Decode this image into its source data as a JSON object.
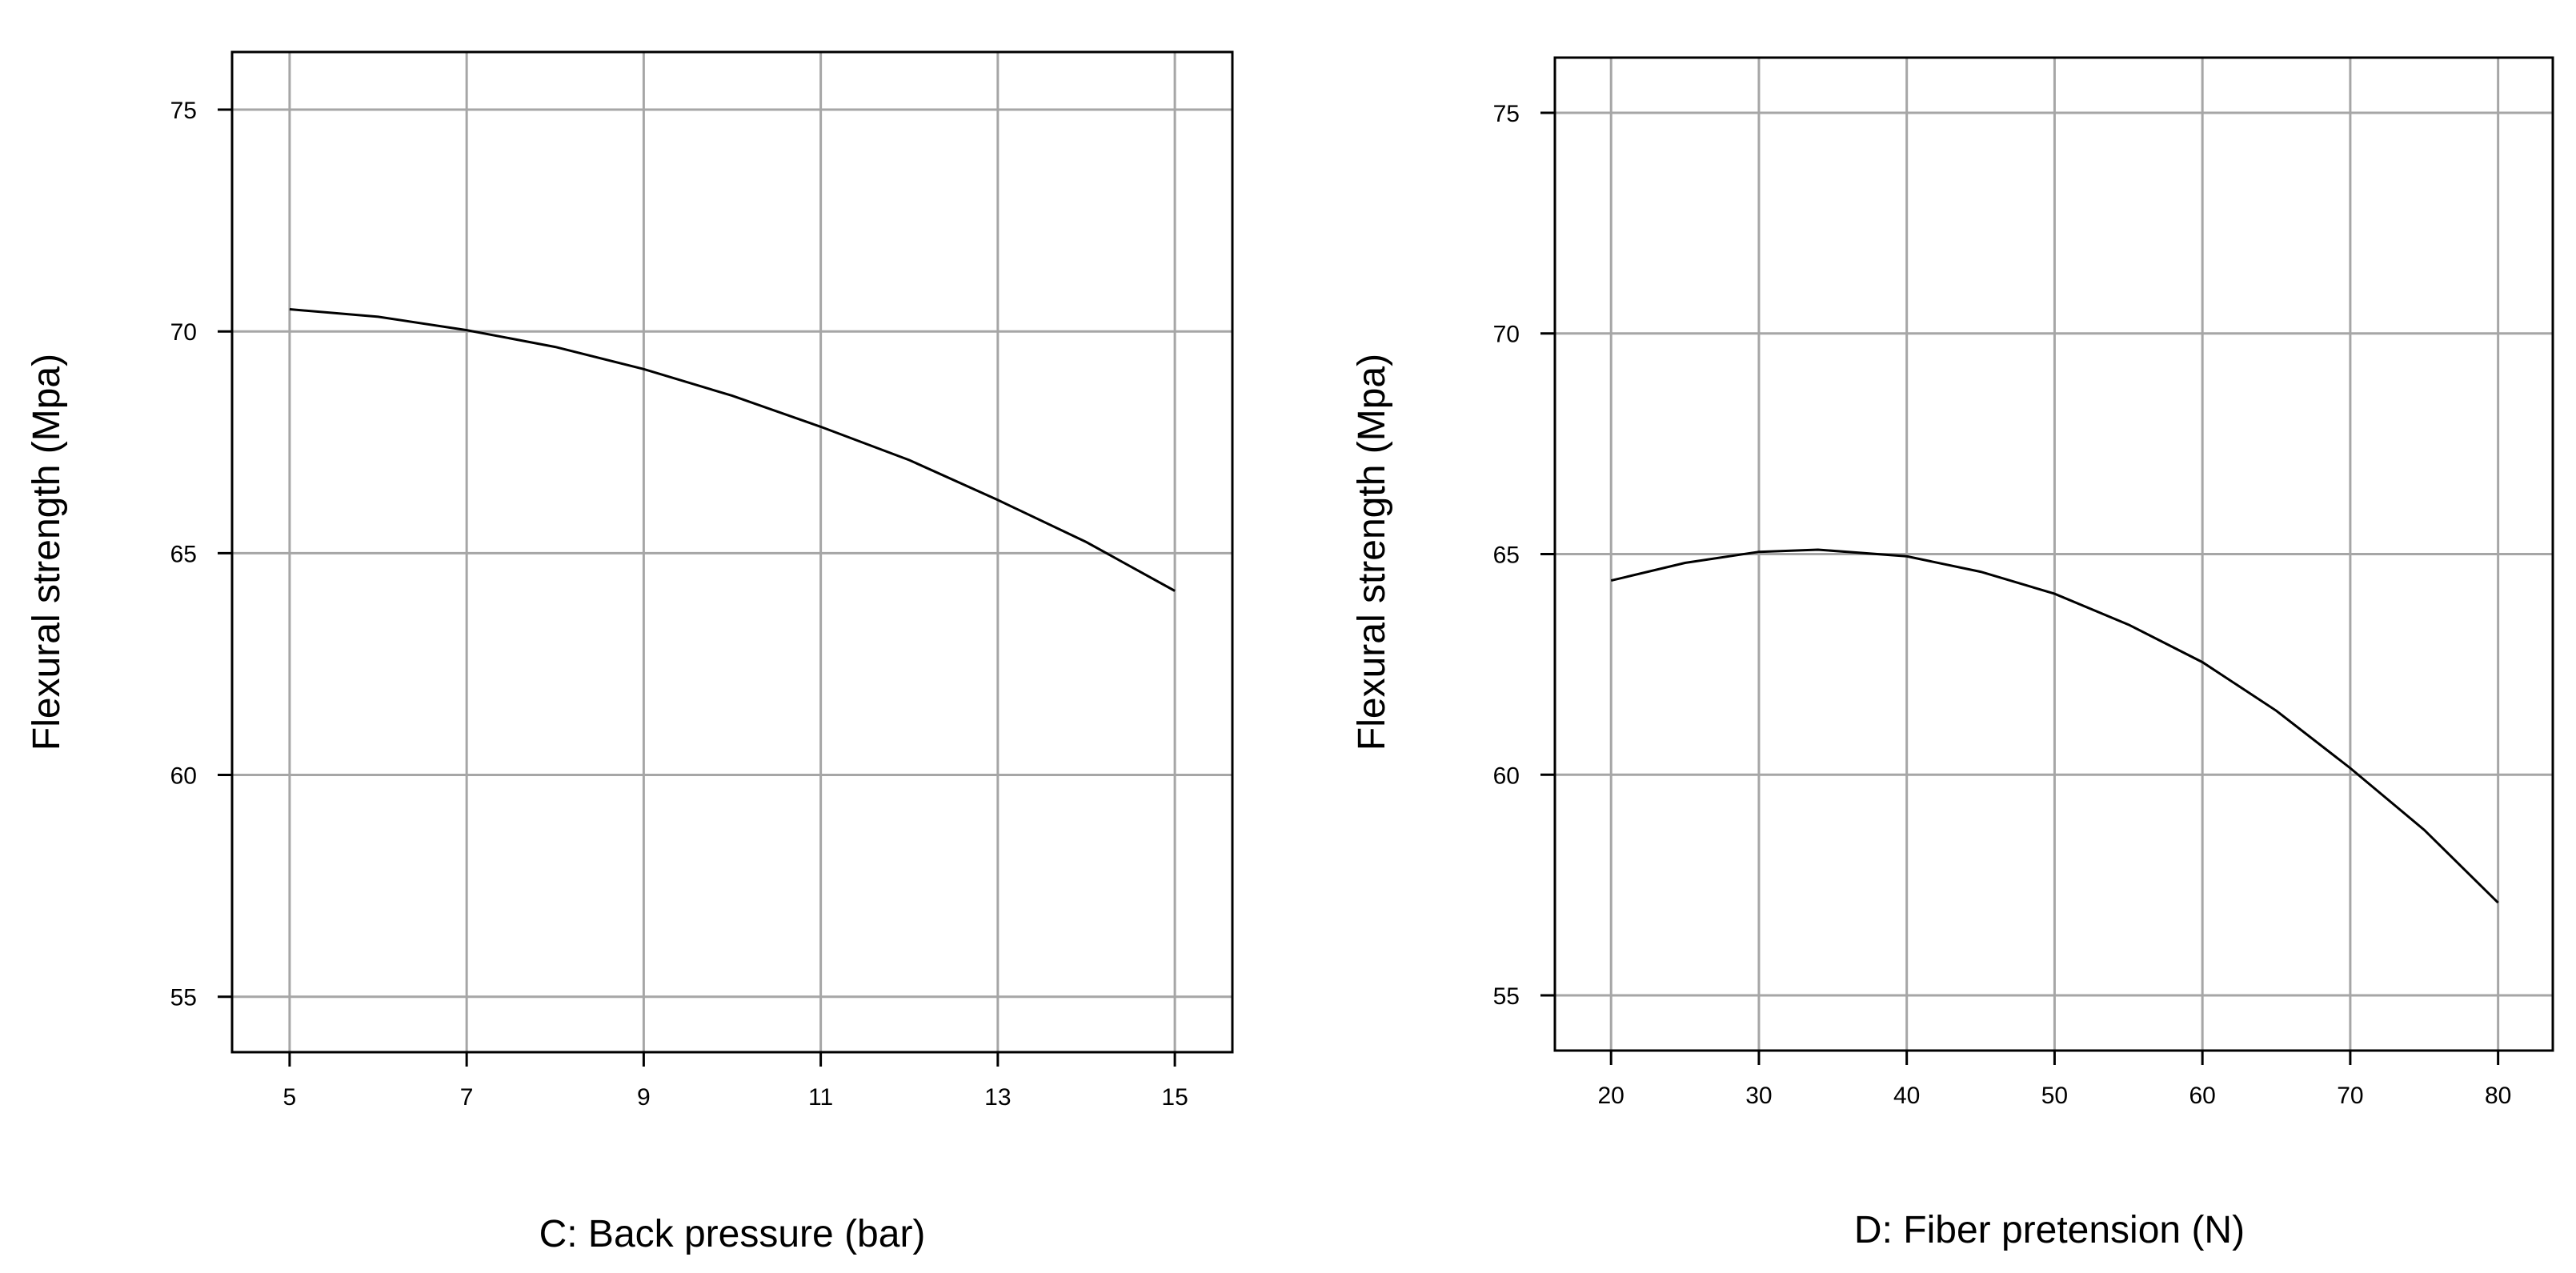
{
  "chart_data": [
    {
      "type": "line",
      "xlabel": "C: Back pressure (bar)",
      "ylabel": "Flexural strength (Mpa)",
      "xlim": [
        4.35,
        15.65
      ],
      "ylim": [
        53.75,
        76.3
      ],
      "xticks": [
        5,
        7,
        9,
        11,
        13,
        15
      ],
      "yticks": [
        55,
        60,
        65,
        70,
        75
      ],
      "grid": true,
      "series": [
        {
          "x": [
            5,
            6,
            7,
            8,
            9,
            10,
            11,
            12,
            13,
            14,
            15
          ],
          "y": [
            70.5,
            70.33,
            70.03,
            69.65,
            69.15,
            68.55,
            67.85,
            67.1,
            66.2,
            65.25,
            64.15
          ]
        }
      ]
    },
    {
      "type": "line",
      "xlabel": "D: Fiber pretension (N)",
      "ylabel": "Flexural strength (Mpa)",
      "xlim": [
        16.2,
        83.7
      ],
      "ylim": [
        53.75,
        76.25
      ],
      "xticks": [
        20,
        30,
        40,
        50,
        60,
        70,
        80
      ],
      "yticks": [
        55,
        60,
        65,
        70,
        75
      ],
      "grid": true,
      "series": [
        {
          "x": [
            20,
            25,
            30,
            34,
            40,
            45,
            50,
            55,
            60,
            65,
            70,
            75,
            80
          ],
          "y": [
            64.4,
            64.8,
            65.05,
            65.1,
            64.95,
            64.6,
            64.1,
            63.4,
            62.55,
            61.45,
            60.15,
            58.75,
            57.1
          ]
        }
      ]
    }
  ]
}
